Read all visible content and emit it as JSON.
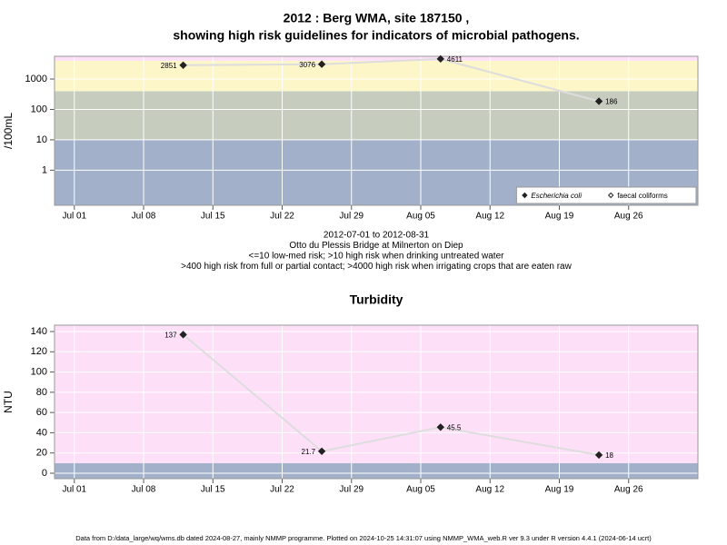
{
  "chart_data": [
    {
      "type": "line",
      "title": [
        "2012 : Berg WMA, site 187150 ,",
        "showing high risk guidelines for indicators of microbial pathogens."
      ],
      "ylabel": "/100mL",
      "ylog": true,
      "ylim": [
        0.07,
        5600
      ],
      "yticks": [
        1,
        10,
        100,
        1000
      ],
      "xlim": [
        "06-29",
        "09-02"
      ],
      "xticks": [
        {
          "value": "07-01",
          "label": "Jul 01"
        },
        {
          "value": "07-08",
          "label": "Jul 08"
        },
        {
          "value": "07-15",
          "label": "Jul 15"
        },
        {
          "value": "07-22",
          "label": "Jul 22"
        },
        {
          "value": "07-29",
          "label": "Jul 29"
        },
        {
          "value": "08-05",
          "label": "Aug 05"
        },
        {
          "value": "08-12",
          "label": "Aug 12"
        },
        {
          "value": "08-19",
          "label": "Aug 19"
        },
        {
          "value": "08-26",
          "label": "Aug 26"
        }
      ],
      "grid": true,
      "bands": [
        {
          "to": 10,
          "color": "#a2b1c9"
        },
        {
          "from": 10,
          "to": 400,
          "color": "#c6ccbe"
        },
        {
          "from": 400,
          "to": 4000,
          "color": "#fdf6c9"
        },
        {
          "from": 4000,
          "color": "#fde0f8"
        }
      ],
      "x": [
        "07-12",
        "07-26",
        "08-07",
        "08-23"
      ],
      "series": [
        {
          "name": "Escherichia coli",
          "color": "#222222",
          "line_color": "#dddddd",
          "marker": "filled",
          "values": [
            2851,
            3076,
            4611,
            186
          ]
        },
        {
          "name": "faecal coliforms",
          "color": "#222222",
          "line_color": "#dddddd",
          "marker": "open",
          "values": [
            null,
            null,
            null,
            null
          ]
        }
      ],
      "legend": "bottomright",
      "notes": [
        "2012-07-01 to 2012-08-31",
        "Otto du Plessis Bridge at Milnerton on Diep",
        "<=10 low-med risk; >10 high risk when drinking untreated water",
        ">400 high risk from full or partial contact; >4000 high risk when irrigating crops that are eaten raw"
      ]
    },
    {
      "type": "line",
      "title": [
        "Turbidity"
      ],
      "ylabel": "NTU",
      "ylim": [
        -5.4,
        146.3
      ],
      "yticks": [
        0,
        20,
        40,
        60,
        80,
        100,
        120,
        140
      ],
      "xlim": [
        "06-29",
        "09-02"
      ],
      "xticks": [
        {
          "value": "07-01",
          "label": "Jul 01"
        },
        {
          "value": "07-08",
          "label": "Jul 08"
        },
        {
          "value": "07-15",
          "label": "Jul 15"
        },
        {
          "value": "07-22",
          "label": "Jul 22"
        },
        {
          "value": "07-29",
          "label": "Jul 29"
        },
        {
          "value": "08-05",
          "label": "Aug 05"
        },
        {
          "value": "08-12",
          "label": "Aug 12"
        },
        {
          "value": "08-19",
          "label": "Aug 19"
        },
        {
          "value": "08-26",
          "label": "Aug 26"
        }
      ],
      "grid": true,
      "bands": [
        {
          "to": 10,
          "color": "#a2b1c9"
        },
        {
          "from": 10,
          "color": "#fde0f8"
        }
      ],
      "x": [
        "07-12",
        "07-26",
        "08-07",
        "08-23"
      ],
      "series": [
        {
          "color": "#222222",
          "line_color": "#dddddd",
          "marker": "filled",
          "values": [
            137,
            21.7,
            45.5,
            18
          ]
        }
      ]
    }
  ],
  "footer": "Data from D:/data_large/wq/wms.db dated 2024-08-27, mainly NMMP programme. Plotted on 2024-10-25 14:31:07 using NMMP_WMA_web.R ver 9.3 under R version 4.4.1 (2024-06-14 ucrt)"
}
